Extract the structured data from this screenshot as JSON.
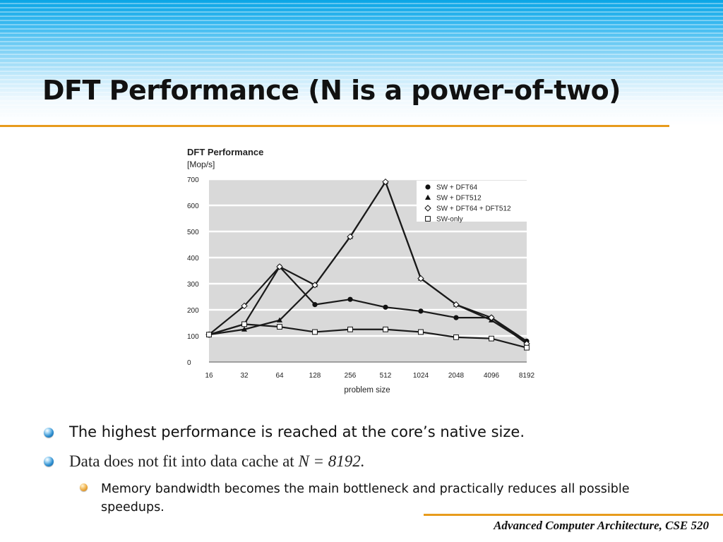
{
  "slide": {
    "title": "DFT Performance (N is a power-of-two)",
    "footer": "Advanced Computer Architecture, CSE 520"
  },
  "bullets": [
    {
      "text": "The highest performance is reached at the core’s native size."
    },
    {
      "text_prefix": "Data does not fit into data cache at ",
      "text_emph": "N = 8192",
      "text_suffix": "."
    },
    {
      "text": "Memory bandwidth becomes the main bottleneck and practically reduces all possible speedups."
    }
  ],
  "colors": {
    "accent_rule": "#e79b1c",
    "plot_background": "#d9d9d9",
    "series_line": "#1a1a1a"
  },
  "chart_data": {
    "type": "line",
    "title": "DFT Performance",
    "ylabel": "[Mop/s]",
    "xlabel": "problem size",
    "categories": [
      "16",
      "32",
      "64",
      "128",
      "256",
      "512",
      "1024",
      "2048",
      "4096",
      "8192"
    ],
    "yticks": [
      "0",
      "100",
      "200",
      "300",
      "400",
      "500",
      "600",
      "700"
    ],
    "ylim": [
      0,
      700
    ],
    "grid": "horizontal",
    "legend_position": "top-right",
    "series": [
      {
        "name": "SW + DFT64",
        "marker": "filled-circle",
        "values": [
          105,
          145,
          365,
          220,
          240,
          210,
          195,
          170,
          170,
          80
        ]
      },
      {
        "name": "SW + DFT512",
        "marker": "filled-triangle",
        "values": [
          105,
          125,
          160,
          295,
          480,
          690,
          320,
          220,
          160,
          75
        ]
      },
      {
        "name": "SW + DFT64 + DFT512",
        "marker": "open-diamond",
        "values": [
          105,
          215,
          365,
          295,
          480,
          690,
          320,
          220,
          170,
          70
        ]
      },
      {
        "name": "SW-only",
        "marker": "open-square",
        "values": [
          105,
          145,
          135,
          115,
          125,
          125,
          115,
          95,
          90,
          55
        ]
      }
    ]
  }
}
